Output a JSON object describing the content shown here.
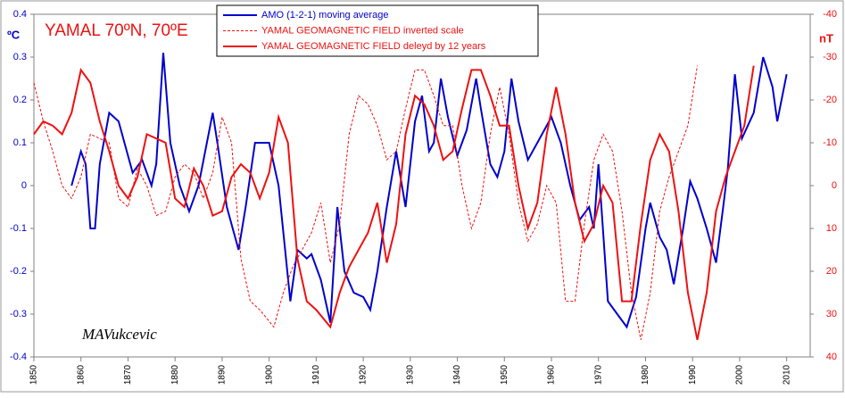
{
  "chart_data": {
    "type": "line",
    "title": "YAMAL 70ºN, 70ºE",
    "ylabel": "ºC",
    "y2label": "nT",
    "annotation": "MAVukcevic",
    "xlim": [
      1850,
      2015
    ],
    "xticks": [
      1850,
      1860,
      1870,
      1880,
      1890,
      1900,
      1910,
      1920,
      1930,
      1940,
      1950,
      1960,
      1970,
      1980,
      1990,
      2000,
      2010
    ],
    "ylim": [
      -0.4,
      0.4
    ],
    "yticks": [
      0.4,
      0.3,
      0.2,
      0.1,
      0,
      -0.1,
      -0.2,
      -0.3,
      -0.4
    ],
    "y2lim": [
      40,
      -40
    ],
    "y2ticks": [
      -40,
      -30,
      -20,
      -10,
      0,
      10,
      20,
      30,
      40
    ],
    "series": [
      {
        "name": "AMO (1-2-1) moving average",
        "color": "#0000cc",
        "line_style": "solid",
        "x": [
          1858,
          1860,
          1861,
          1862,
          1863,
          1864,
          1866,
          1868,
          1871,
          1873,
          1875,
          1876,
          1877.5,
          1879,
          1881,
          1883,
          1885,
          1888,
          1889,
          1891,
          1893.5,
          1895,
          1897,
          1900,
          1902,
          1904.5,
          1906,
          1908,
          1909,
          1911,
          1913,
          1914.5,
          1916,
          1918,
          1920,
          1921.5,
          1923,
          1925,
          1927,
          1929,
          1931,
          1932.5,
          1934,
          1935,
          1936.5,
          1938,
          1940,
          1942,
          1944,
          1945,
          1947,
          1948.5,
          1950,
          1951.5,
          1953,
          1955,
          1957,
          1960,
          1962,
          1964,
          1966,
          1968,
          1969,
          1970,
          1972,
          1974,
          1976,
          1978,
          1980,
          1981,
          1983,
          1984.5,
          1986,
          1988,
          1989.5,
          1991,
          1993,
          1995,
          1996.5,
          1997.5,
          1999,
          2000.5,
          2003,
          2005,
          2007,
          2008,
          2010
        ],
        "values": [
          0,
          0.08,
          0.05,
          -0.1,
          -0.1,
          0.05,
          0.17,
          0.15,
          0.03,
          0.06,
          0,
          0.05,
          0.31,
          0.1,
          0,
          -0.06,
          0,
          0.17,
          0.1,
          -0.05,
          -0.15,
          -0.05,
          0.1,
          0.1,
          0,
          -0.27,
          -0.15,
          -0.17,
          -0.16,
          -0.22,
          -0.32,
          -0.05,
          -0.2,
          -0.25,
          -0.26,
          -0.29,
          -0.2,
          -0.05,
          0.08,
          -0.05,
          0.15,
          0.21,
          0.08,
          0.1,
          0.25,
          0.16,
          0.07,
          0.13,
          0.25,
          0.18,
          0.05,
          0.02,
          0.08,
          0.25,
          0.15,
          0.06,
          0.1,
          0.16,
          0.1,
          0,
          -0.08,
          -0.05,
          -0.1,
          0.05,
          -0.27,
          -0.3,
          -0.33,
          -0.26,
          -0.1,
          -0.04,
          -0.12,
          -0.15,
          -0.23,
          -0.1,
          0.01,
          -0.03,
          -0.1,
          -0.18,
          -0.05,
          0.04,
          0.26,
          0.11,
          0.17,
          0.3,
          0.23,
          0.15,
          0.26
        ]
      },
      {
        "name": "YAMAL GEOMAGNETIC FIELD inverted scale",
        "color": "#ee1111",
        "line_style": "dashed",
        "axis": "y2",
        "x": [
          1850,
          1852,
          1854,
          1856,
          1858,
          1860,
          1862,
          1864,
          1866,
          1868,
          1870,
          1872,
          1874,
          1876,
          1878,
          1880,
          1882,
          1884,
          1886,
          1888,
          1890,
          1892,
          1894,
          1896,
          1898,
          1901,
          1903,
          1905,
          1907,
          1909,
          1911,
          1913,
          1915,
          1917,
          1919,
          1921,
          1923,
          1925,
          1927,
          1929,
          1931,
          1933,
          1935,
          1937,
          1939,
          1941,
          1943,
          1945,
          1947,
          1949,
          1951,
          1953,
          1955,
          1957,
          1959,
          1961,
          1963,
          1965,
          1967,
          1969,
          1971,
          1973,
          1975,
          1977,
          1979,
          1981,
          1983,
          1985,
          1987,
          1989,
          1991
        ],
        "values": [
          -24,
          -15,
          -8,
          0,
          3,
          -2,
          -12,
          -11,
          -10,
          3,
          5,
          -4,
          0,
          7,
          6,
          -2,
          -5,
          -3,
          3,
          -3,
          -16,
          -10,
          17,
          27,
          29,
          33,
          25,
          19,
          15,
          11,
          4,
          18,
          9,
          -12,
          -21,
          -19,
          -14,
          -6,
          -8,
          -18,
          -27,
          -27,
          -21,
          -14,
          -14,
          0,
          10,
          4,
          -12,
          -23,
          -12,
          4,
          13,
          9,
          0,
          4,
          27,
          27,
          9,
          -6,
          -12,
          -8,
          6,
          25,
          36,
          25,
          6,
          -2,
          -8,
          -14,
          -28
        ]
      },
      {
        "name": "YAMAL GEOMAGNETIC FIELD deleyd by 12 years",
        "color": "#ee1111",
        "line_style": "solid",
        "axis": "y2",
        "x": [
          1850,
          1852,
          1854,
          1856,
          1858,
          1860,
          1862,
          1864,
          1866,
          1868,
          1870,
          1872,
          1874,
          1876,
          1878,
          1880,
          1882,
          1884,
          1886,
          1888,
          1890,
          1892,
          1894,
          1896,
          1898,
          1900,
          1902,
          1904,
          1906,
          1908,
          1910,
          1913,
          1915,
          1917,
          1919,
          1921,
          1923,
          1925,
          1927,
          1929,
          1931,
          1933,
          1935,
          1937,
          1939,
          1941,
          1943,
          1945,
          1947,
          1949,
          1951,
          1953,
          1955,
          1957,
          1959,
          1961,
          1963,
          1965,
          1967,
          1969,
          1971,
          1973,
          1975,
          1977,
          1979,
          1981,
          1983,
          1985,
          1987,
          1989,
          1991,
          1993,
          1995,
          1997,
          1999,
          2001,
          2003
        ],
        "values": [
          -12,
          -15,
          -14,
          -12,
          -17,
          -27,
          -24,
          -15,
          -8,
          0,
          3,
          -2,
          -12,
          -11,
          -10,
          3,
          5,
          -4,
          0,
          7,
          6,
          -2,
          -5,
          -3,
          3,
          -3,
          -16,
          -10,
          17,
          27,
          29,
          33,
          25,
          19,
          15,
          11,
          4,
          18,
          9,
          -12,
          -21,
          -19,
          -14,
          -6,
          -8,
          -18,
          -27,
          -27,
          -21,
          -14,
          -14,
          0,
          10,
          4,
          -12,
          -23,
          -12,
          4,
          13,
          9,
          0,
          4,
          27,
          27,
          9,
          -6,
          -12,
          -8,
          6,
          25,
          36,
          25,
          6,
          -2,
          -8,
          -14,
          -28
        ]
      }
    ]
  }
}
